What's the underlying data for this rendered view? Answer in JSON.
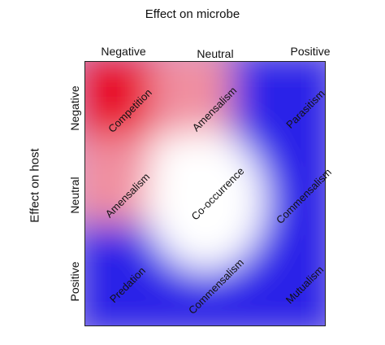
{
  "axes": {
    "top_title": "Effect on microbe",
    "side_title": "Effect on host",
    "columns": [
      "Negative",
      "Neutral",
      "Positive"
    ],
    "rows": [
      "Negative",
      "Neutral",
      "Positive"
    ]
  },
  "cells": [
    [
      "Competition",
      "Amensalism",
      "Parasitism"
    ],
    [
      "Amensalism",
      "Co-occurrence",
      "Commensalism"
    ],
    [
      "Predation",
      "Commensalism",
      "Mutualism"
    ]
  ],
  "colors": {
    "negative": "#e8102a",
    "neutral": "#ffffff",
    "positive": "#2a20e8",
    "border": "#222222",
    "text": "#111111"
  }
}
